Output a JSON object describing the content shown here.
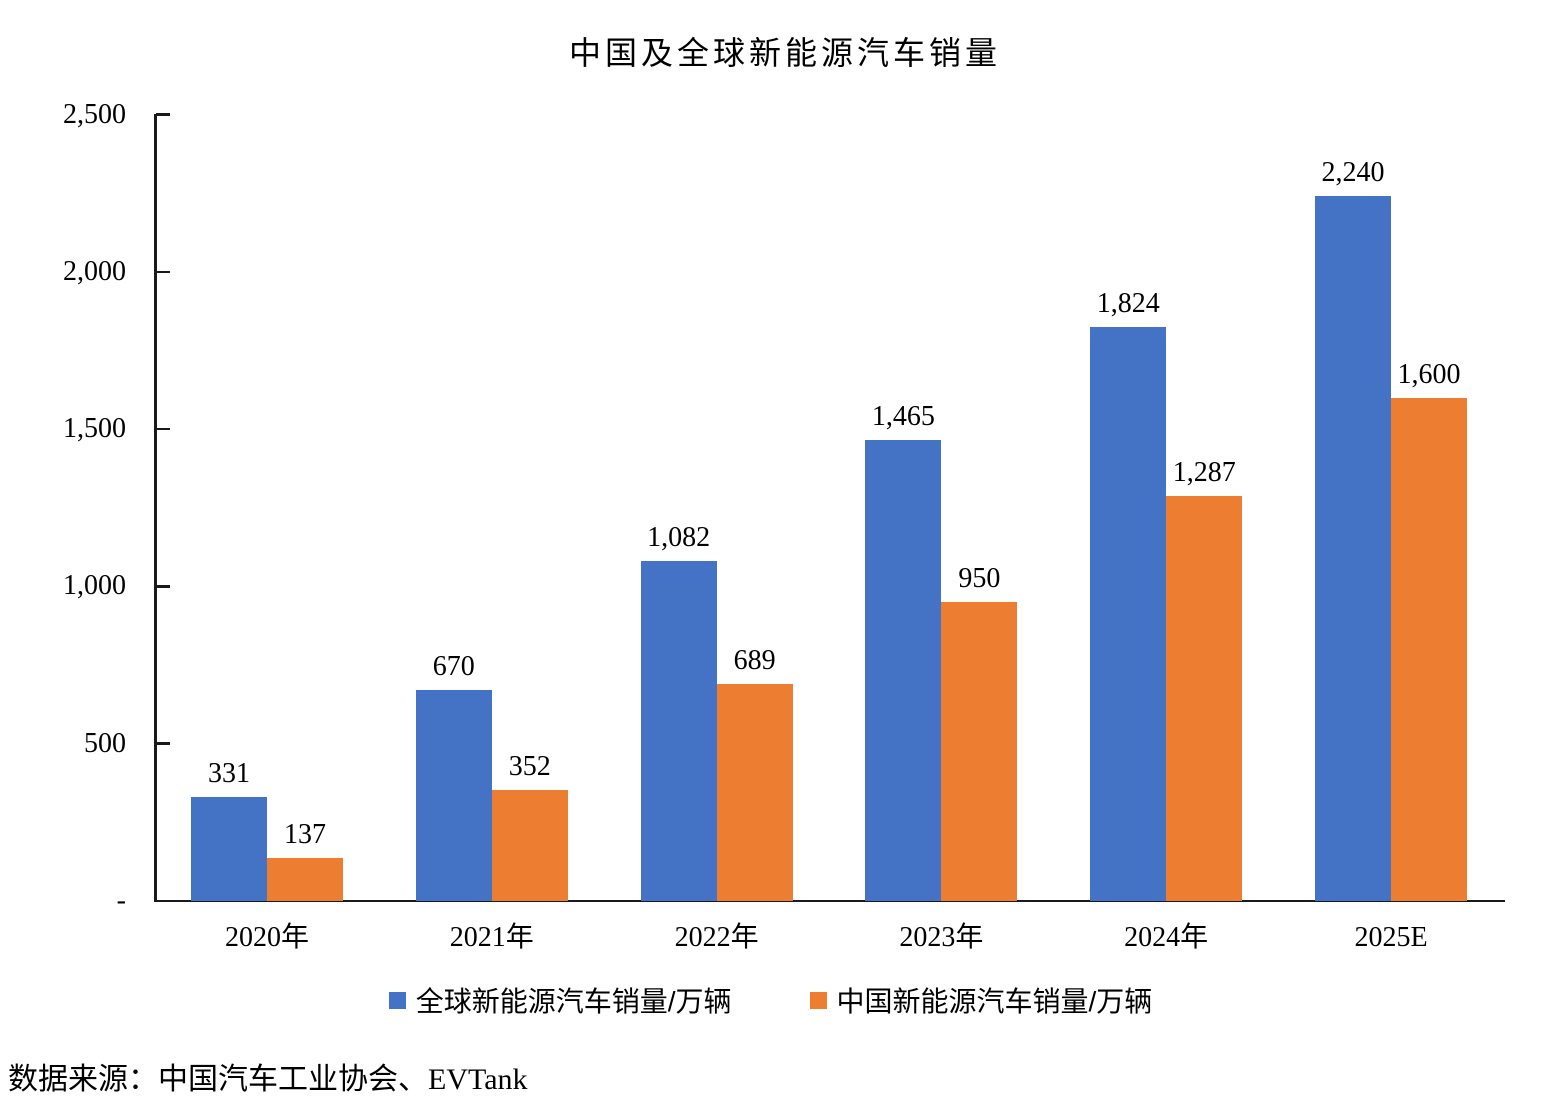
{
  "title": "中国及全球新能源汽车销量",
  "source": "数据来源：中国汽车工业协会、EVTank",
  "colors": {
    "global_series": "#4472C4",
    "china_series": "#ED7D31",
    "axis": "#1a1a1a"
  },
  "chart_data": {
    "type": "bar",
    "title": "中国及全球新能源汽车销量",
    "categories": [
      "2020年",
      "2021年",
      "2022年",
      "2023年",
      "2024年",
      "2025E"
    ],
    "series": [
      {
        "name": "全球新能源汽车销量/万辆",
        "color": "#4472C4",
        "values": [
          331,
          670,
          1082,
          1465,
          1824,
          2240
        ],
        "value_labels": [
          "331",
          "670",
          "1,082",
          "1,465",
          "1,824",
          "2,240"
        ]
      },
      {
        "name": "中国新能源汽车销量/万辆",
        "color": "#ED7D31",
        "values": [
          137,
          352,
          689,
          950,
          1287,
          1600
        ],
        "value_labels": [
          "137",
          "352",
          "689",
          "950",
          "1,287",
          "1,600"
        ]
      }
    ],
    "xlabel": "",
    "ylabel": "",
    "ylim": [
      0,
      2500
    ],
    "y_ticks": [
      {
        "value": 0,
        "label": "-"
      },
      {
        "value": 500,
        "label": "500"
      },
      {
        "value": 1000,
        "label": "1,000"
      },
      {
        "value": 1500,
        "label": "1,500"
      },
      {
        "value": 2000,
        "label": "2,000"
      },
      {
        "value": 2500,
        "label": "2,500"
      }
    ],
    "grid": false,
    "legend_position": "bottom",
    "data_labels": true
  }
}
